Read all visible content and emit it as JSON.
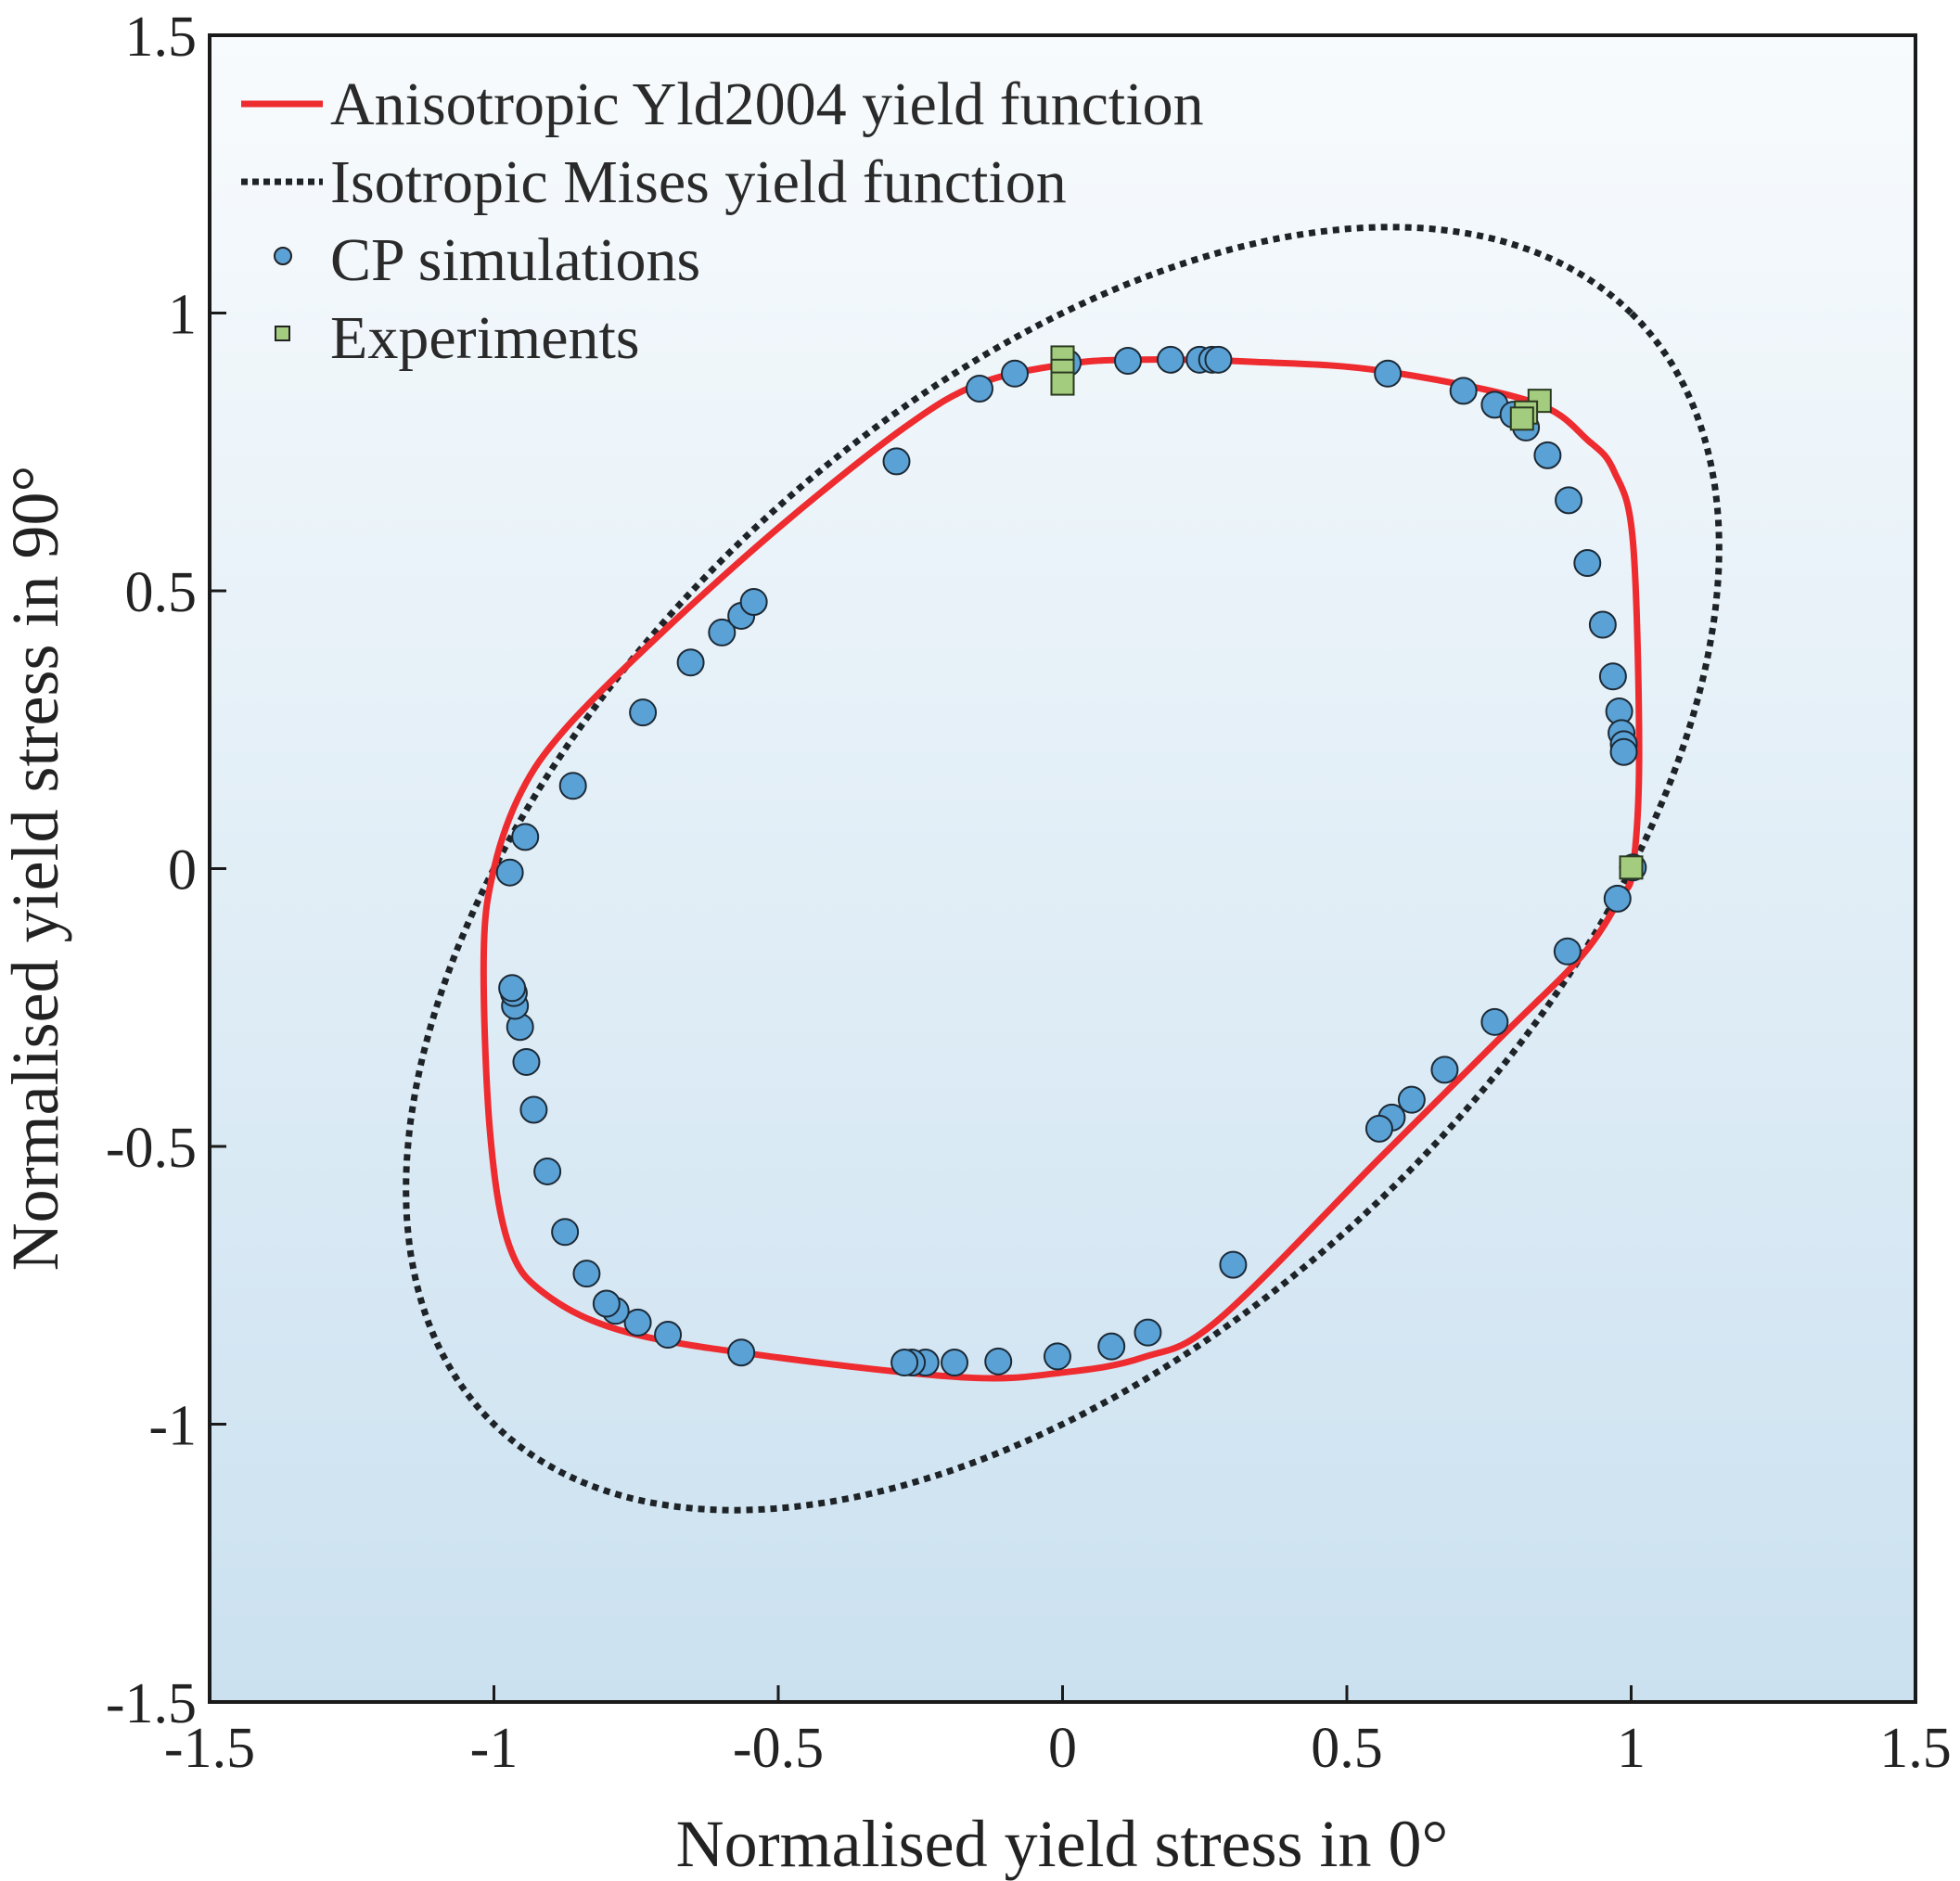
{
  "chart_data": {
    "type": "scatter",
    "title": "",
    "xlabel": "Normalised yield stress in 0°",
    "ylabel": "Normalised yield stress in 90°",
    "xlim": [
      -1.5,
      1.5
    ],
    "ylim": [
      -1.5,
      1.5
    ],
    "xticks": [
      "-1.5",
      "-1",
      "-0.5",
      "0",
      "0.5",
      "1",
      "1.5"
    ],
    "yticks": [
      "-1.5",
      "-1",
      "-0.5",
      "0",
      "0.5",
      "1",
      "1.5"
    ],
    "grid": false,
    "legend_position": "top-left",
    "colors": {
      "yld": "#ee2b2f",
      "mises": "#1e2327",
      "cp": "#5aa1d6",
      "exp": "#a3cc7e",
      "bg_top": "#f8fbfd",
      "bg_bottom": "#cbe1f0"
    },
    "series": [
      {
        "name": "Anisotropic Yld2004 yield function",
        "kind": "line",
        "points": [
          [
            1.003,
            0
          ],
          [
            1.014,
            0.206
          ],
          [
            1.003,
            0.59
          ],
          [
            0.97,
            0.715
          ],
          [
            0.925,
            0.77
          ],
          [
            0.826,
            0.84
          ],
          [
            0.561,
            0.896
          ],
          [
            0.34,
            0.912
          ],
          [
            0.12,
            0.916
          ],
          [
            0,
            0.907
          ],
          [
            -0.146,
            0.873
          ],
          [
            -0.278,
            0.794
          ],
          [
            -0.5,
            0.613
          ],
          [
            -0.72,
            0.41
          ],
          [
            -0.875,
            0.251
          ],
          [
            -0.952,
            0.138
          ],
          [
            -1.0,
            0
          ],
          [
            -1.018,
            -0.156
          ],
          [
            -1.007,
            -0.473
          ],
          [
            -0.974,
            -0.676
          ],
          [
            -0.908,
            -0.767
          ],
          [
            -0.764,
            -0.835
          ],
          [
            -0.5,
            -0.88
          ],
          [
            -0.168,
            -0.916
          ],
          [
            0,
            -0.907
          ],
          [
            0.141,
            -0.88
          ],
          [
            0.274,
            -0.812
          ],
          [
            0.561,
            -0.518
          ],
          [
            0.782,
            -0.292
          ],
          [
            0.914,
            -0.156
          ],
          [
            0.98,
            -0.054
          ]
        ]
      },
      {
        "name": "Isotropic Mises yield function",
        "kind": "dotted-line",
        "equation": "x^2 - x*y + y^2 = 1"
      },
      {
        "name": "CP simulations",
        "kind": "circle",
        "points": [
          [
            -0.292,
            0.733
          ],
          [
            -0.146,
            0.864
          ],
          [
            -0.084,
            0.891
          ],
          [
            0.009,
            0.91
          ],
          [
            0.115,
            0.914
          ],
          [
            0.19,
            0.916
          ],
          [
            0.241,
            0.916
          ],
          [
            0.263,
            0.916
          ],
          [
            0.274,
            0.916
          ],
          [
            0.572,
            0.891
          ],
          [
            0.705,
            0.86
          ],
          [
            0.76,
            0.835
          ],
          [
            0.793,
            0.817
          ],
          [
            0.815,
            0.794
          ],
          [
            0.853,
            0.744
          ],
          [
            0.89,
            0.663
          ],
          [
            0.923,
            0.55
          ],
          [
            0.95,
            0.439
          ],
          [
            0.968,
            0.346
          ],
          [
            0.979,
            0.283
          ],
          [
            0.983,
            0.244
          ],
          [
            0.987,
            0.224
          ],
          [
            0.987,
            0.21
          ],
          [
            1.003,
            0.002
          ],
          [
            0.976,
            -0.054
          ],
          [
            0.888,
            -0.149
          ],
          [
            0.76,
            -0.276
          ],
          [
            0.672,
            -0.362
          ],
          [
            0.614,
            -0.416
          ],
          [
            0.579,
            -0.448
          ],
          [
            0.557,
            -0.468
          ],
          [
            0.3,
            -0.713
          ],
          [
            0.15,
            -0.835
          ],
          [
            0.086,
            -0.86
          ],
          [
            -0.009,
            -0.878
          ],
          [
            -0.113,
            -0.887
          ],
          [
            -0.19,
            -0.889
          ],
          [
            -0.241,
            -0.889
          ],
          [
            -0.265,
            -0.889
          ],
          [
            -0.278,
            -0.889
          ],
          [
            -0.565,
            -0.871
          ],
          [
            -0.694,
            -0.839
          ],
          [
            -0.747,
            -0.817
          ],
          [
            -0.786,
            -0.796
          ],
          [
            -0.802,
            -0.783
          ],
          [
            -0.837,
            -0.729
          ],
          [
            -0.875,
            -0.654
          ],
          [
            -0.906,
            -0.545
          ],
          [
            -0.93,
            -0.434
          ],
          [
            -0.943,
            -0.348
          ],
          [
            -0.954,
            -0.285
          ],
          [
            -0.963,
            -0.247
          ],
          [
            -0.965,
            -0.224
          ],
          [
            -0.968,
            -0.215
          ],
          [
            -0.972,
            -0.007
          ],
          [
            -0.945,
            0.057
          ],
          [
            -0.861,
            0.149
          ],
          [
            -0.738,
            0.281
          ],
          [
            -0.654,
            0.371
          ],
          [
            -0.599,
            0.425
          ],
          [
            -0.565,
            0.455
          ],
          [
            -0.543,
            0.48
          ]
        ]
      },
      {
        "name": "Experiments",
        "kind": "square",
        "points": [
          [
            0,
            0.92
          ],
          [
            0,
            0.896
          ],
          [
            0,
            0.873
          ],
          [
            0.839,
            0.842
          ],
          [
            0.815,
            0.821
          ],
          [
            0.808,
            0.81
          ],
          [
            1.0,
            0.002
          ]
        ]
      }
    ]
  }
}
